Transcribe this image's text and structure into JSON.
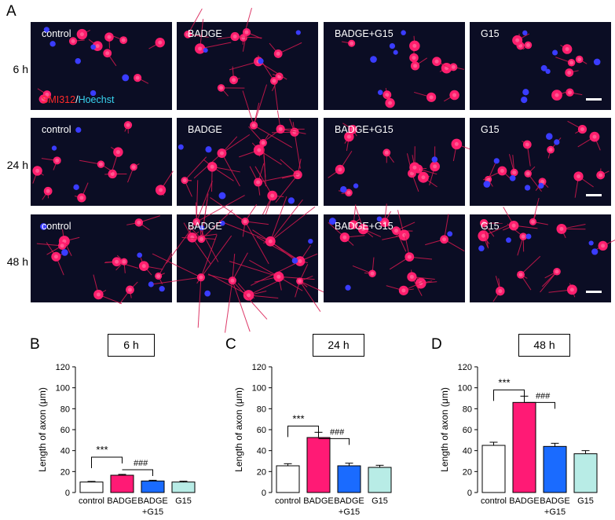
{
  "panel_letters": {
    "a": "A",
    "b": "B",
    "c": "C",
    "d": "D"
  },
  "rows": [
    {
      "label": "6 h",
      "conditions": [
        "control",
        "BADGE",
        "BADGE+G15",
        "G15"
      ]
    },
    {
      "label": "24 h",
      "conditions": [
        "control",
        "BADGE",
        "BADGE+G15",
        "G15"
      ]
    },
    {
      "label": "48 h",
      "conditions": [
        "control",
        "BADGE",
        "BADGE+G15",
        "G15"
      ]
    }
  ],
  "stain": {
    "part1": "SMI312",
    "sep": "/",
    "part2": "Hoechst"
  },
  "colors": {
    "control": "#ffffff",
    "badge": "#ff1a75",
    "badge_g15": "#1a6bff",
    "g15": "#b8ece6",
    "micro_bg": "#0b0d24",
    "cell": "#ff1f6e",
    "nucleus": "#3a3cff"
  },
  "chart_data": [
    {
      "type": "bar",
      "panel": "B",
      "time": "6 h",
      "categories": [
        "control",
        "BADGE",
        "BADGE\n+G15",
        "G15"
      ],
      "values": [
        10,
        16.5,
        11,
        10
      ],
      "errors": [
        0.6,
        0.8,
        0.7,
        0.8
      ],
      "ylabel": "Length of axon (μm)",
      "ylim": [
        0,
        120
      ],
      "yticks": [
        0,
        20,
        40,
        60,
        80,
        100,
        120
      ],
      "annotations": [
        {
          "text": "***",
          "from": 0,
          "to": 1
        },
        {
          "text": "###",
          "from": 1,
          "to": 2
        }
      ]
    },
    {
      "type": "bar",
      "panel": "C",
      "time": "24 h",
      "categories": [
        "control",
        "BADGE",
        "BADGE\n+G15",
        "G15"
      ],
      "values": [
        25.5,
        52.5,
        25.5,
        24
      ],
      "errors": [
        2,
        5,
        2.5,
        2
      ],
      "ylabel": "Length of axon (μm)",
      "ylim": [
        0,
        120
      ],
      "yticks": [
        0,
        20,
        40,
        60,
        80,
        100,
        120
      ],
      "annotations": [
        {
          "text": "***",
          "from": 0,
          "to": 1
        },
        {
          "text": "###",
          "from": 1,
          "to": 2
        }
      ]
    },
    {
      "type": "bar",
      "panel": "D",
      "time": "48 h",
      "categories": [
        "control",
        "BADGE",
        "BADGE\n+G15",
        "G15"
      ],
      "values": [
        45,
        86,
        44,
        37
      ],
      "errors": [
        3,
        6,
        3,
        3
      ],
      "ylabel": "Length of axon (μm)",
      "ylim": [
        0,
        120
      ],
      "yticks": [
        0,
        20,
        40,
        60,
        80,
        100,
        120
      ],
      "annotations": [
        {
          "text": "***",
          "from": 0,
          "to": 1
        },
        {
          "text": "###",
          "from": 1,
          "to": 2
        }
      ]
    }
  ]
}
